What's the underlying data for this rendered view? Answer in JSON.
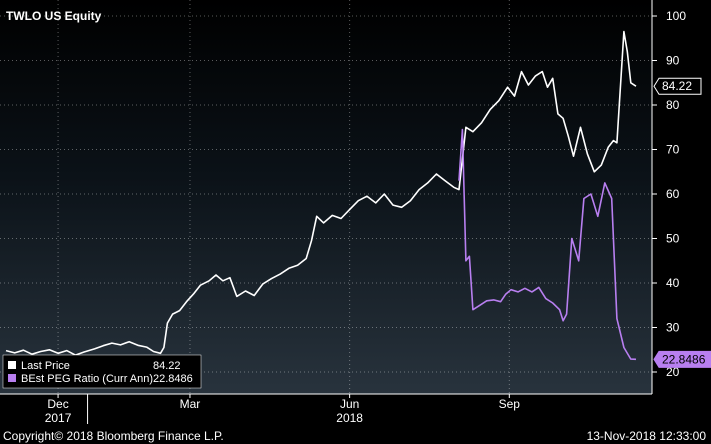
{
  "chart_data": {
    "type": "line",
    "title": "TWLO US Equity",
    "xlabel": "",
    "ylabel": "",
    "ylim": [
      20,
      100
    ],
    "yticks": [
      20,
      30,
      40,
      50,
      60,
      70,
      80,
      90,
      100
    ],
    "x_range": [
      "2017-11-15",
      "2018-11-13"
    ],
    "x_ticks": [
      {
        "label": "Dec",
        "date": "2017-12-15"
      },
      {
        "label": "Mar",
        "date": "2018-03-01"
      },
      {
        "label": "Jun",
        "date": "2018-06-01"
      },
      {
        "label": "Sep",
        "date": "2018-09-01"
      }
    ],
    "year_labels": [
      {
        "label": "2017",
        "date": "2017-12-15"
      },
      {
        "label": "2018",
        "date": "2018-06-01"
      }
    ],
    "year_separators": [
      "2018-01-01"
    ],
    "grid": true,
    "legend_position": "bottom-left",
    "series": [
      {
        "name": "Last Price",
        "color": "#ffffff",
        "last_label": "84.22",
        "points": [
          [
            "2017-11-15",
            24.8
          ],
          [
            "2017-11-20",
            24.3
          ],
          [
            "2017-11-25",
            24.9
          ],
          [
            "2017-11-30",
            24.0
          ],
          [
            "2017-12-05",
            24.6
          ],
          [
            "2017-12-10",
            25.0
          ],
          [
            "2017-12-15",
            24.2
          ],
          [
            "2017-12-20",
            24.8
          ],
          [
            "2017-12-25",
            23.8
          ],
          [
            "2017-12-30",
            24.5
          ],
          [
            "2018-01-05",
            25.2
          ],
          [
            "2018-01-10",
            25.9
          ],
          [
            "2018-01-15",
            26.5
          ],
          [
            "2018-01-20",
            26.1
          ],
          [
            "2018-01-25",
            26.8
          ],
          [
            "2018-01-30",
            26.0
          ],
          [
            "2018-02-04",
            25.6
          ],
          [
            "2018-02-08",
            24.6
          ],
          [
            "2018-02-12",
            24.2
          ],
          [
            "2018-02-14",
            25.5
          ],
          [
            "2018-02-16",
            31.0
          ],
          [
            "2018-02-19",
            33.0
          ],
          [
            "2018-02-23",
            33.8
          ],
          [
            "2018-02-27",
            35.8
          ],
          [
            "2018-03-03",
            37.5
          ],
          [
            "2018-03-07",
            39.5
          ],
          [
            "2018-03-12",
            40.5
          ],
          [
            "2018-03-16",
            41.8
          ],
          [
            "2018-03-20",
            40.5
          ],
          [
            "2018-03-24",
            41.2
          ],
          [
            "2018-03-28",
            37.0
          ],
          [
            "2018-04-02",
            38.2
          ],
          [
            "2018-04-07",
            37.2
          ],
          [
            "2018-04-12",
            39.8
          ],
          [
            "2018-04-17",
            41.0
          ],
          [
            "2018-04-22",
            42.0
          ],
          [
            "2018-04-27",
            43.3
          ],
          [
            "2018-05-02",
            44.0
          ],
          [
            "2018-05-07",
            45.5
          ],
          [
            "2018-05-10",
            49.5
          ],
          [
            "2018-05-13",
            55.0
          ],
          [
            "2018-05-17",
            53.5
          ],
          [
            "2018-05-22",
            55.2
          ],
          [
            "2018-05-27",
            54.5
          ],
          [
            "2018-06-01",
            56.5
          ],
          [
            "2018-06-06",
            58.5
          ],
          [
            "2018-06-11",
            59.5
          ],
          [
            "2018-06-16",
            58.0
          ],
          [
            "2018-06-21",
            60.0
          ],
          [
            "2018-06-26",
            57.5
          ],
          [
            "2018-07-01",
            57.0
          ],
          [
            "2018-07-06",
            58.5
          ],
          [
            "2018-07-11",
            61.0
          ],
          [
            "2018-07-16",
            62.5
          ],
          [
            "2018-07-21",
            64.5
          ],
          [
            "2018-07-26",
            63.0
          ],
          [
            "2018-07-31",
            61.5
          ],
          [
            "2018-08-03",
            61.0
          ],
          [
            "2018-08-07",
            75.0
          ],
          [
            "2018-08-11",
            74.0
          ],
          [
            "2018-08-16",
            76.0
          ],
          [
            "2018-08-21",
            79.0
          ],
          [
            "2018-08-26",
            81.0
          ],
          [
            "2018-08-31",
            84.0
          ],
          [
            "2018-09-04",
            82.0
          ],
          [
            "2018-09-08",
            87.5
          ],
          [
            "2018-09-12",
            84.5
          ],
          [
            "2018-09-16",
            86.5
          ],
          [
            "2018-09-20",
            87.5
          ],
          [
            "2018-09-23",
            84.0
          ],
          [
            "2018-09-26",
            86.0
          ],
          [
            "2018-09-29",
            78.0
          ],
          [
            "2018-10-02",
            77.0
          ],
          [
            "2018-10-05",
            73.0
          ],
          [
            "2018-10-08",
            68.5
          ],
          [
            "2018-10-12",
            75.0
          ],
          [
            "2018-10-16",
            69.0
          ],
          [
            "2018-10-20",
            65.0
          ],
          [
            "2018-10-24",
            66.5
          ],
          [
            "2018-10-28",
            70.5
          ],
          [
            "2018-10-31",
            72.0
          ],
          [
            "2018-11-02",
            71.5
          ],
          [
            "2018-11-04",
            84.0
          ],
          [
            "2018-11-06",
            96.5
          ],
          [
            "2018-11-08",
            92.0
          ],
          [
            "2018-11-10",
            85.0
          ],
          [
            "2018-11-13",
            84.22
          ]
        ]
      },
      {
        "name": "BEst PEG Ratio (Curr Ann)",
        "color": "#b87ff0",
        "last_label": "22.8486",
        "points": [
          [
            "2018-08-03",
            63.0
          ],
          [
            "2018-08-05",
            74.5
          ],
          [
            "2018-08-07",
            45.0
          ],
          [
            "2018-08-09",
            46.0
          ],
          [
            "2018-08-11",
            34.0
          ],
          [
            "2018-08-15",
            35.0
          ],
          [
            "2018-08-19",
            36.0
          ],
          [
            "2018-08-23",
            36.2
          ],
          [
            "2018-08-27",
            35.8
          ],
          [
            "2018-08-30",
            37.5
          ],
          [
            "2018-09-02",
            38.5
          ],
          [
            "2018-09-06",
            38.0
          ],
          [
            "2018-09-10",
            38.8
          ],
          [
            "2018-09-14",
            38.0
          ],
          [
            "2018-09-18",
            39.0
          ],
          [
            "2018-09-22",
            36.5
          ],
          [
            "2018-09-26",
            35.5
          ],
          [
            "2018-09-30",
            34.0
          ],
          [
            "2018-10-02",
            31.5
          ],
          [
            "2018-10-04",
            33.0
          ],
          [
            "2018-10-07",
            50.0
          ],
          [
            "2018-10-11",
            45.0
          ],
          [
            "2018-10-14",
            59.0
          ],
          [
            "2018-10-18",
            60.0
          ],
          [
            "2018-10-22",
            55.0
          ],
          [
            "2018-10-26",
            62.5
          ],
          [
            "2018-10-30",
            59.0
          ],
          [
            "2018-11-02",
            32.0
          ],
          [
            "2018-11-06",
            25.5
          ],
          [
            "2018-11-10",
            22.9
          ],
          [
            "2018-11-13",
            22.8486
          ]
        ]
      }
    ],
    "legend_values": [
      "84.22",
      "22.8486"
    ]
  },
  "footer": {
    "copyright": "Copyright© 2018 Bloomberg Finance L.P.",
    "timestamp": "13-Nov-2018 12:33:00"
  }
}
